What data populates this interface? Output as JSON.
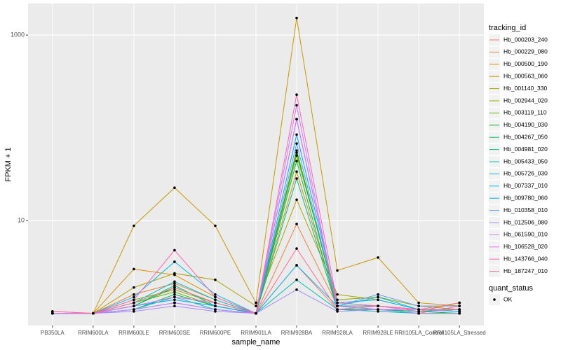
{
  "chart_data": {
    "type": "line",
    "x_label": "sample_name",
    "y_label": "FPKM + 1",
    "categories": [
      "PB350LA",
      "RRIM600LA",
      "RRIM600LE",
      "RRIM600SE",
      "RRIM600PE",
      "RRIM901LA",
      "RRIM928BA",
      "RRIM928LA",
      "RRIM928LE",
      "RRII105LA_Control",
      "RRII105LA_Stressed"
    ],
    "log_scale_y": true,
    "grid": true,
    "ylim": [
      0.74,
      2190
    ],
    "yticks": [
      10,
      1000
    ],
    "legend_position": "right",
    "legend_title": "tracking_id",
    "point_color": "#000000",
    "quant_status_title": "quant_status",
    "quant_status_levels": [
      "OK"
    ],
    "series": [
      {
        "name": "Hb_000203_240",
        "color": "#F8766D",
        "values": [
          1,
          1,
          1.1,
          1.3,
          1.1,
          1,
          3.3,
          1.1,
          1.1,
          1,
          1.2
        ]
      },
      {
        "name": "Hb_000229_080",
        "color": "#EC8239",
        "values": [
          1,
          1,
          1.6,
          2.1,
          1.4,
          1,
          9.2,
          1.2,
          1.1,
          1.05,
          1.3
        ]
      },
      {
        "name": "Hb_000500_190",
        "color": "#DB8E00",
        "values": [
          1,
          1,
          3.0,
          2.6,
          1.5,
          1,
          33.7,
          1.2,
          1.2,
          1.1,
          1.1
        ]
      },
      {
        "name": "Hb_000563_060",
        "color": "#C79800",
        "values": [
          1,
          1,
          8.8,
          22.6,
          8.8,
          1.3,
          1530,
          2.9,
          4.0,
          1.3,
          1.2
        ]
      },
      {
        "name": "Hb_001140_330",
        "color": "#AEA200",
        "values": [
          1,
          1,
          1.9,
          2.7,
          2.3,
          1.2,
          16.8,
          1.6,
          1.4,
          1.1,
          1.1
        ]
      },
      {
        "name": "Hb_002944_020",
        "color": "#8FAA00",
        "values": [
          1,
          1,
          1.4,
          1.8,
          1.3,
          1,
          50.3,
          1.4,
          1.5,
          1.2,
          1.1
        ]
      },
      {
        "name": "Hb_003119_110",
        "color": "#64B200",
        "values": [
          1,
          1,
          1.3,
          1.7,
          1.2,
          1,
          54,
          1.3,
          1.2,
          1.1,
          1.05
        ]
      },
      {
        "name": "Hb_004190_030",
        "color": "#00B81B",
        "values": [
          1,
          1,
          1.2,
          1.9,
          1.3,
          1,
          56.9,
          1.2,
          1.1,
          1.05,
          1
        ]
      },
      {
        "name": "Hb_004267_050",
        "color": "#00BD5C",
        "values": [
          1,
          1,
          1.1,
          1.6,
          1.2,
          1,
          43.9,
          1.1,
          1.1,
          1,
          1
        ]
      },
      {
        "name": "Hb_004981_020",
        "color": "#00C08D",
        "values": [
          1,
          1,
          1.2,
          2.0,
          1.2,
          1,
          28.4,
          1.1,
          1.1,
          1.05,
          1.1
        ]
      },
      {
        "name": "Hb_005433_050",
        "color": "#00C1B2",
        "values": [
          1,
          1,
          1.1,
          1.5,
          1.1,
          1,
          2.3,
          1.1,
          1.05,
          1,
          1
        ]
      },
      {
        "name": "Hb_005726_030",
        "color": "#00BFD4",
        "values": [
          1,
          1,
          1.3,
          2.2,
          1.4,
          1,
          124,
          1.2,
          1.5,
          1.1,
          1.1
        ]
      },
      {
        "name": "Hb_007337_010",
        "color": "#00BAEE",
        "values": [
          1,
          1,
          1.5,
          3.6,
          1.6,
          1,
          3.3,
          1.2,
          1.2,
          1.1,
          1.05
        ]
      },
      {
        "name": "Hb_009780_060",
        "color": "#00ADFA",
        "values": [
          1,
          1,
          1.2,
          1.4,
          1.2,
          1,
          84.6,
          1.3,
          1.4,
          1.1,
          1.1
        ]
      },
      {
        "name": "Hb_010358_010",
        "color": "#619CFF",
        "values": [
          1,
          1,
          1.1,
          1.3,
          1.1,
          1,
          67.8,
          1.2,
          1.6,
          1.2,
          1.2
        ]
      },
      {
        "name": "Hb_012506_080",
        "color": "#A58AFF",
        "values": [
          1,
          1,
          1.05,
          1.2,
          1.05,
          1,
          1.8,
          1.05,
          1.1,
          1,
          1
        ]
      },
      {
        "name": "Hb_061590_010",
        "color": "#C77CFF",
        "values": [
          1,
          1,
          1.1,
          1.3,
          1.1,
          1,
          175,
          1.1,
          1.2,
          1.05,
          1.1
        ]
      },
      {
        "name": "Hb_106528_020",
        "color": "#EC69EF",
        "values": [
          1,
          1,
          1.2,
          1.5,
          1.3,
          1,
          124,
          1.2,
          1.1,
          1.1,
          1.1
        ]
      },
      {
        "name": "Hb_143766_040",
        "color": "#FF62BC",
        "values": [
          1.05,
          1,
          1.4,
          4.8,
          1.5,
          1,
          228,
          1.3,
          1.2,
          1.1,
          1.1
        ]
      },
      {
        "name": "Hb_187247_010",
        "color": "#FF6C91",
        "values": [
          1.05,
          1,
          1.3,
          1.9,
          1.3,
          1,
          5.0,
          1.1,
          1.2,
          1.1,
          1.3
        ]
      }
    ]
  }
}
